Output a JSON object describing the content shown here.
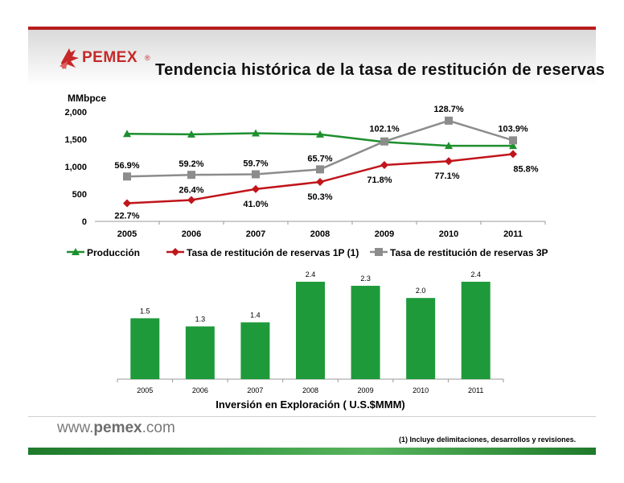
{
  "header": {
    "logo_text": "PEMEX",
    "logo_reg": "®",
    "title": "Tendencia histórica de la tasa de restitución de reservas"
  },
  "footer": {
    "url_prefix": "www.",
    "url_brand": "pemex",
    "url_suffix": ".com",
    "footnote": "(1)  Incluye delimitaciones, desarrollos y revisiones."
  },
  "colors": {
    "produccion": "#1e8f2e",
    "tasa1p": "#c0151b",
    "tasa3p": "#8c8c8c",
    "bars": "#1e9a3a"
  },
  "chart_data": [
    {
      "type": "line",
      "ylabel": "MMbpce",
      "ylim": [
        0,
        2000
      ],
      "yticks": [
        "0",
        "500",
        "1,000",
        "1,500",
        "2,000"
      ],
      "categories": [
        "2005",
        "2006",
        "2007",
        "2008",
        "2009",
        "2010",
        "2011"
      ],
      "grid": false,
      "legend_position": "bottom",
      "series": [
        {
          "name": "Producción",
          "marker": "triangle",
          "values": [
            1600,
            1590,
            1610,
            1590,
            1450,
            1380,
            1380
          ],
          "labels": []
        },
        {
          "name": "Tasa de restitución de reservas 1P (1)",
          "marker": "diamond",
          "values": [
            330,
            390,
            590,
            720,
            1030,
            1100,
            1230
          ],
          "labels": [
            "22.7%",
            "26.4%",
            "41.0%",
            "50.3%",
            "71.8%",
            "77.1%",
            "85.8%"
          ]
        },
        {
          "name": "Tasa de restitución de reservas 3P",
          "marker": "square",
          "values": [
            820,
            850,
            860,
            950,
            1460,
            1840,
            1480
          ],
          "labels": [
            "56.9%",
            "59.2%",
            "59.7%",
            "65.7%",
            "102.1%",
            "128.7%",
            "103.9%"
          ]
        }
      ]
    },
    {
      "type": "bar",
      "title": "Inversión en Exploración ( U.S.$MMM)",
      "categories": [
        "2005",
        "2006",
        "2007",
        "2008",
        "2009",
        "2010",
        "2011"
      ],
      "values": [
        1.5,
        1.3,
        1.4,
        2.4,
        2.3,
        2.0,
        2.4
      ],
      "labels": [
        "1.5",
        "1.3",
        "1.4",
        "2.4",
        "2.3",
        "2.0",
        "2.4"
      ],
      "ylim": [
        0,
        2.4
      ]
    }
  ]
}
